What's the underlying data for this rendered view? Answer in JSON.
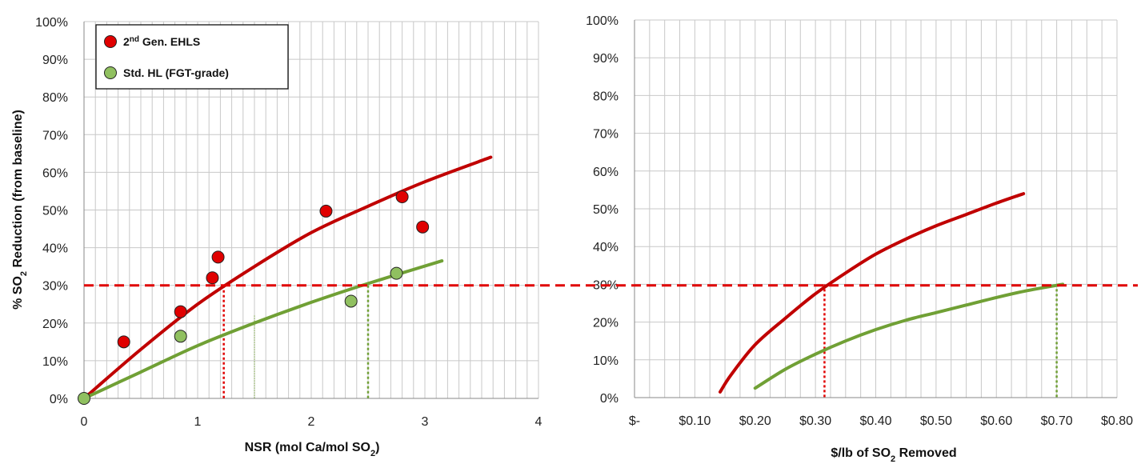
{
  "colors": {
    "ehls": "#C00000",
    "std": "#70A035",
    "ehls_marker": "#E00000",
    "std_marker": "#90C060",
    "threshold": "#E00000",
    "grid": "#C8C8C8"
  },
  "chart_data": [
    {
      "type": "scatter",
      "ylabel": "% SO2 Reduction (from baseline)",
      "ylabel_parts": {
        "pre": "% SO",
        "sub": "2",
        "post": " Reduction (from baseline)"
      },
      "xlabel": "NSR (mol Ca/mol SO2)",
      "xlabel_parts": {
        "pre": "NSR (mol Ca/mol SO",
        "sub": "2",
        "post": ")"
      },
      "xlim": [
        0,
        4
      ],
      "ylim": [
        0,
        1
      ],
      "x_ticks": [
        "0",
        "1",
        "2",
        "3",
        "4"
      ],
      "y_ticks": [
        "0%",
        "10%",
        "20%",
        "30%",
        "40%",
        "50%",
        "60%",
        "70%",
        "80%",
        "90%",
        "100%"
      ],
      "grid": true,
      "legend_position": "top-left",
      "legend": [
        {
          "label_pre": "2",
          "label_sup": "nd",
          "label_post": " Gen. EHLS",
          "series": "ehls"
        },
        {
          "label_pre": "Std. HL (FGT-grade)",
          "label_sup": "",
          "label_post": "",
          "series": "std"
        }
      ],
      "series": [
        {
          "name": "2nd Gen. EHLS",
          "key": "ehls",
          "points": [
            [
              0.35,
              0.15
            ],
            [
              0.85,
              0.23
            ],
            [
              1.13,
              0.32
            ],
            [
              1.18,
              0.375
            ],
            [
              2.13,
              0.497
            ],
            [
              2.8,
              0.535
            ],
            [
              2.98,
              0.455
            ]
          ],
          "fit": [
            [
              0,
              0
            ],
            [
              0.5,
              0.13
            ],
            [
              1.0,
              0.25
            ],
            [
              1.5,
              0.35
            ],
            [
              2.0,
              0.44
            ],
            [
              2.5,
              0.51
            ],
            [
              3.0,
              0.575
            ],
            [
              3.58,
              0.64
            ]
          ]
        },
        {
          "name": "Std. HL (FGT-grade)",
          "key": "std",
          "points": [
            [
              0,
              0
            ],
            [
              0.85,
              0.165
            ],
            [
              2.35,
              0.258
            ],
            [
              2.75,
              0.332
            ]
          ],
          "fit": [
            [
              0,
              0
            ],
            [
              0.5,
              0.07
            ],
            [
              1.0,
              0.14
            ],
            [
              1.5,
              0.2
            ],
            [
              2.0,
              0.255
            ],
            [
              2.5,
              0.305
            ],
            [
              3.15,
              0.365
            ]
          ]
        }
      ],
      "threshold_y": 0.3,
      "drop_lines": [
        {
          "x": 1.23,
          "color": "ehls",
          "style": "dotted"
        },
        {
          "x": 2.5,
          "color": "std",
          "style": "dotted"
        },
        {
          "x": 1.5,
          "color": "std",
          "style": "thin"
        }
      ]
    },
    {
      "type": "line",
      "xlabel": "$/lb of SO2 Removed",
      "xlabel_parts": {
        "pre": "$/lb of SO",
        "sub": "2",
        "post": " Removed"
      },
      "xlim": [
        0,
        0.8
      ],
      "ylim": [
        0,
        1
      ],
      "x_ticks": [
        "$-",
        "$0.10",
        "$0.20",
        "$0.30",
        "$0.40",
        "$0.50",
        "$0.60",
        "$0.70",
        "$0.80"
      ],
      "y_ticks": [
        "0%",
        "10%",
        "20%",
        "30%",
        "40%",
        "50%",
        "60%",
        "70%",
        "80%",
        "90%",
        "100%"
      ],
      "grid": true,
      "series": [
        {
          "name": "2nd Gen. EHLS",
          "key": "ehls",
          "fit": [
            [
              0.142,
              0.015
            ],
            [
              0.16,
              0.06
            ],
            [
              0.2,
              0.14
            ],
            [
              0.25,
              0.21
            ],
            [
              0.3,
              0.275
            ],
            [
              0.35,
              0.33
            ],
            [
              0.4,
              0.38
            ],
            [
              0.45,
              0.42
            ],
            [
              0.5,
              0.455
            ],
            [
              0.55,
              0.485
            ],
            [
              0.6,
              0.515
            ],
            [
              0.645,
              0.54
            ]
          ]
        },
        {
          "name": "Std. HL (FGT-grade)",
          "key": "std",
          "fit": [
            [
              0.2,
              0.025
            ],
            [
              0.25,
              0.075
            ],
            [
              0.3,
              0.115
            ],
            [
              0.35,
              0.15
            ],
            [
              0.4,
              0.18
            ],
            [
              0.45,
              0.205
            ],
            [
              0.5,
              0.225
            ],
            [
              0.55,
              0.245
            ],
            [
              0.6,
              0.265
            ],
            [
              0.65,
              0.283
            ],
            [
              0.71,
              0.3
            ]
          ]
        }
      ],
      "threshold_y": 0.3,
      "drop_lines": [
        {
          "x": 0.315,
          "color": "ehls",
          "style": "dotted"
        },
        {
          "x": 0.7,
          "color": "std",
          "style": "dotted"
        }
      ]
    }
  ]
}
